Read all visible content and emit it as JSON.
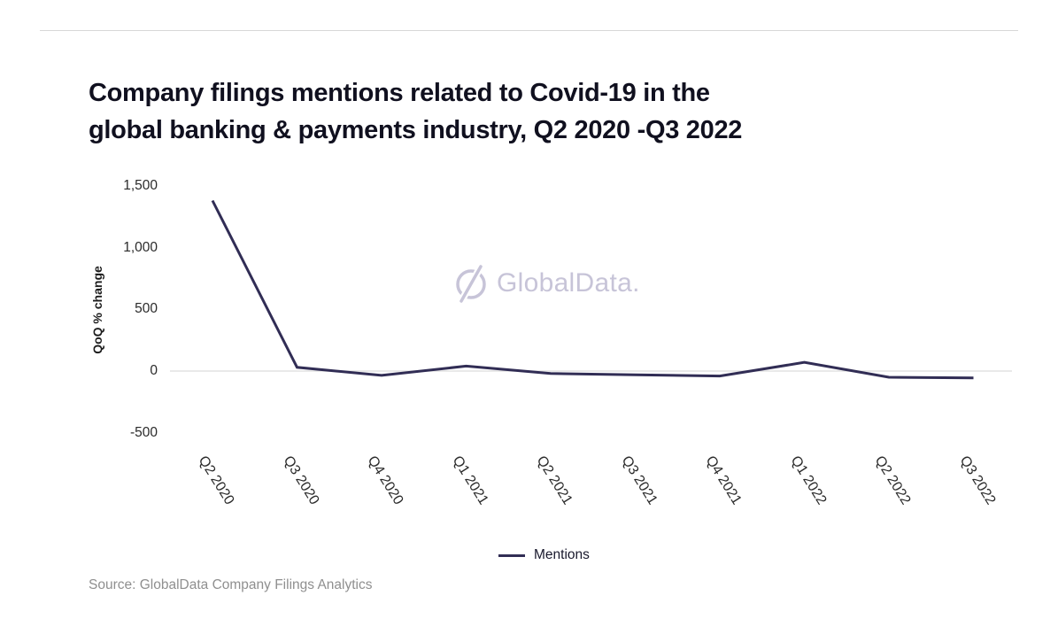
{
  "page": {
    "title_line1": "Company filings mentions related to Covid-19 in the",
    "title_line2": "global banking & payments industry, Q2 2020 -Q3 2022",
    "watermark_text": "GlobalData.",
    "watermark_icon": "globaldata-logo",
    "source": "Source: GlobalData Company Filings Analytics"
  },
  "colors": {
    "series_line": "#312d55",
    "title_text": "#10101f",
    "axis_text": "#2a2a2a",
    "zero_gridline": "#e2e2e2",
    "watermark": "#c7c4d8",
    "source_text": "#8f8f8f",
    "top_divider": "#d8d8d8",
    "background": "#ffffff"
  },
  "chart_data": {
    "type": "line",
    "title": "Company filings mentions related to Covid-19 in the global banking & payments industry, Q2 2020 -Q3 2022",
    "categories": [
      "Q2 2020",
      "Q3 2020",
      "Q4 2020",
      "Q1 2021",
      "Q2 2021",
      "Q3 2021",
      "Q4 2021",
      "Q1 2022",
      "Q2 2022",
      "Q3 2022"
    ],
    "series": [
      {
        "name": "Mentions",
        "values": [
          1380,
          30,
          -35,
          40,
          -20,
          -30,
          -40,
          70,
          -50,
          -55
        ]
      }
    ],
    "xlabel": "",
    "ylabel": "QoQ % change",
    "ylim": [
      -500,
      1500
    ],
    "yticks": {
      "values": [
        1500,
        1000,
        500,
        0,
        -500
      ],
      "labels": [
        "1,500",
        "1,000",
        "500",
        "0",
        "-500"
      ]
    },
    "grid": "zero-line-only",
    "legend_position": "bottom"
  }
}
